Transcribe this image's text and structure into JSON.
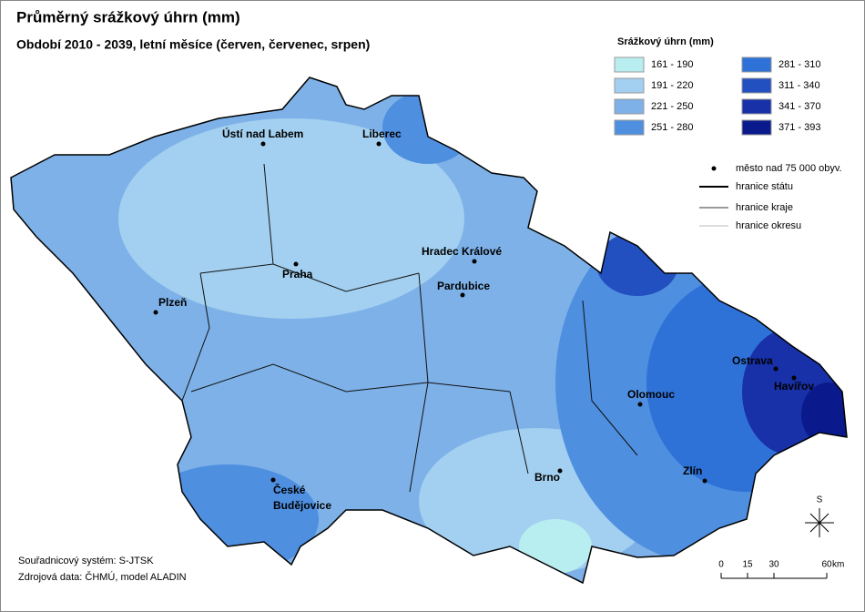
{
  "header": {
    "title": "Průměrný srážkový úhrn (mm)",
    "subtitle": "Období 2010 - 2039,  letní měsíce (červen, červenec, srpen)"
  },
  "legend": {
    "title": "Srážkový úhrn (mm)",
    "classes": [
      {
        "label": "161 - 190",
        "color": "#b8eef0"
      },
      {
        "label": "191 - 220",
        "color": "#a3d0f0"
      },
      {
        "label": "221 - 250",
        "color": "#7db1e8"
      },
      {
        "label": "251 - 280",
        "color": "#4f8fe0"
      },
      {
        "label": "281 - 310",
        "color": "#2e72d8"
      },
      {
        "label": "311 - 340",
        "color": "#2350c0"
      },
      {
        "label": "341 - 370",
        "color": "#1830a8"
      },
      {
        "label": "371 - 393",
        "color": "#0a1a8c"
      }
    ],
    "symbols": [
      "město nad 75 000 obyv.",
      "hranice státu",
      "hranice kraje",
      "hranice okresu"
    ]
  },
  "cities": [
    "Ústí nad Labem",
    "Liberec",
    "Praha",
    "Hradec Králové",
    "Pardubice",
    "Plzeň",
    "Ostrava",
    "Havířov",
    "Olomouc",
    "Zlín",
    "Brno",
    "České Budějovice"
  ],
  "scale": {
    "ticks": [
      0,
      15,
      30,
      60
    ],
    "unit": "km"
  },
  "compass": "S",
  "footer": [
    "Souřadnicový systém: S-JTSK",
    "Zdrojová data: ČHMÚ, model ALADIN"
  ]
}
